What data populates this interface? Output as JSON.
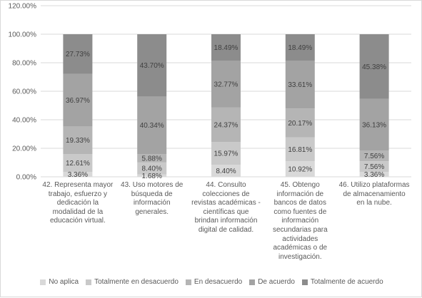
{
  "chart_data": {
    "type": "bar",
    "stacked": true,
    "categories": [
      "42. Representa mayor trabajo, esfuerzo y dedicación la modalidad de la educación virtual.",
      "43. Uso motores de búsqueda de información generales.",
      "44. Consulto colecciones de revistas académicas - científicas que brindan información digital de calidad.",
      "45. Obtengo información de bancos de datos como fuentes de información secundarias para actividades académicas o de investigación.",
      "46. Utilizo plataformas de almacenamiento en la nube."
    ],
    "series": [
      {
        "name": "No aplica",
        "color": "#d9d9d9",
        "values": [
          3.36,
          1.68,
          8.4,
          10.92,
          3.36
        ],
        "labels": [
          "3.36%",
          "1.68%",
          "8.40%",
          "10.92%",
          "3.36%"
        ]
      },
      {
        "name": "Totalmente en desacuerdo",
        "color": "#c9c9c9",
        "values": [
          12.61,
          8.4,
          15.97,
          16.81,
          7.56
        ],
        "labels": [
          "12.61%",
          "8.40%",
          "15.97%",
          "16.81%",
          "7.56%"
        ]
      },
      {
        "name": "En desacuerdo",
        "color": "#b5b5b5",
        "values": [
          19.33,
          5.88,
          24.37,
          20.17,
          7.56
        ],
        "labels": [
          "19.33%",
          "5.88%",
          "24.37%",
          "20.17%",
          "7.56%"
        ]
      },
      {
        "name": "De acuerdo",
        "color": "#a3a3a3",
        "values": [
          36.97,
          40.34,
          32.77,
          33.61,
          36.13
        ],
        "labels": [
          "36.97%",
          "40.34%",
          "32.77%",
          "33.61%",
          "36.13%"
        ]
      },
      {
        "name": "Totalmente de acuerdo",
        "color": "#8c8c8c",
        "values": [
          27.73,
          43.7,
          18.49,
          18.49,
          45.38
        ],
        "labels": [
          "27.73%",
          "43.70%",
          "18.49%",
          "18.49%",
          "45.38%"
        ]
      }
    ],
    "yticks": [
      "0.00%",
      "20.00%",
      "40.00%",
      "60.00%",
      "80.00%",
      "100.00%",
      "120.00%"
    ],
    "ylim": [
      0,
      120
    ],
    "grid": true,
    "legend": "bottom"
  }
}
